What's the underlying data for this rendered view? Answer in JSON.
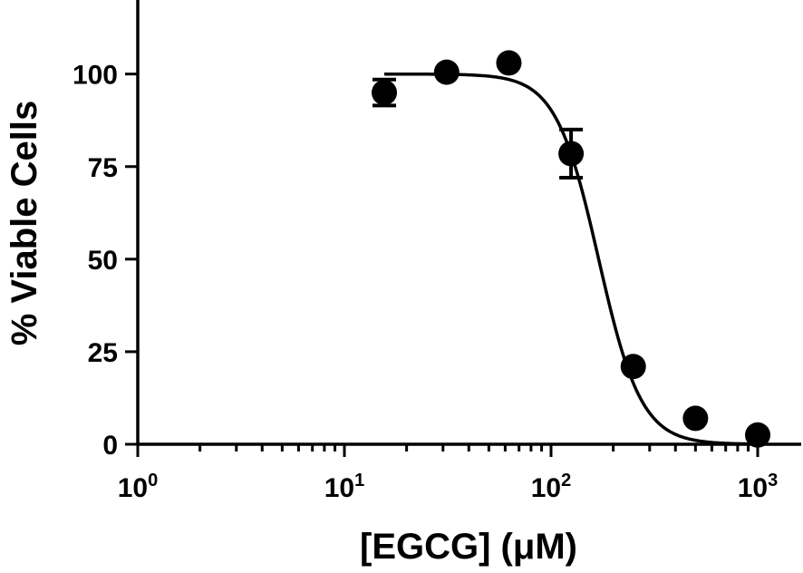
{
  "chart_data": {
    "type": "scatter",
    "xlabel": "[EGCG] (μM)",
    "ylabel": "% Viable Cells",
    "x_scale": "log",
    "xlim": [
      1,
      1000
    ],
    "ylim": [
      0,
      120
    ],
    "x_ticks": [
      {
        "base": "10",
        "exp": "0"
      },
      {
        "base": "10",
        "exp": "1"
      },
      {
        "base": "10",
        "exp": "2"
      },
      {
        "base": "10",
        "exp": "3"
      }
    ],
    "y_ticks": [
      "0",
      "25",
      "50",
      "75",
      "100"
    ],
    "grid": false,
    "series": [
      {
        "x": [
          15.6,
          31.25,
          62.5,
          125,
          250,
          500,
          1000
        ],
        "y": [
          95,
          100.5,
          103,
          78.5,
          21,
          7,
          2.5
        ],
        "error": [
          3.5,
          0.8,
          0.8,
          6.5,
          0.5,
          0.5,
          0.5
        ]
      }
    ],
    "fit_curve": {
      "model": "sigmoidal dose-response",
      "top": 100,
      "bottom": 0,
      "ec50": 170,
      "hill_slope": 4.2
    }
  }
}
